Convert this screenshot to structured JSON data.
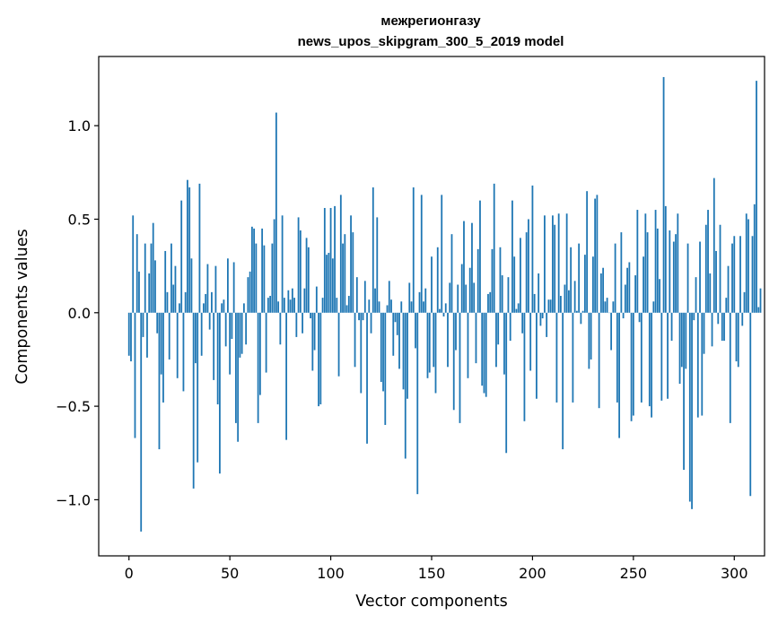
{
  "chart_data": {
    "type": "bar",
    "title_line1": "межрегионгазу",
    "title_line2": "news_upos_skipgram_300_5_2019 model",
    "xlabel": "Vector components",
    "ylabel": "Components values",
    "xlim": [
      -15,
      315
    ],
    "ylim": [
      -1.3,
      1.37
    ],
    "x_ticks": [
      0,
      50,
      100,
      150,
      200,
      250,
      300
    ],
    "x_tick_labels": [
      "0",
      "50",
      "100",
      "150",
      "200",
      "250",
      "300"
    ],
    "y_ticks": [
      -1.0,
      -0.5,
      0.0,
      0.5,
      1.0
    ],
    "y_tick_labels": [
      "−1.0",
      "−0.5",
      "0.0",
      "0.5",
      "1.0"
    ],
    "bar_color": "#1f77b4",
    "grid": false,
    "values": [
      -0.23,
      -0.26,
      0.52,
      -0.67,
      0.42,
      0.22,
      -1.17,
      -0.13,
      0.37,
      -0.24,
      0.21,
      0.37,
      0.48,
      0.28,
      -0.11,
      -0.73,
      -0.33,
      -0.48,
      0.33,
      0.11,
      -0.25,
      0.37,
      0.15,
      0.25,
      -0.35,
      0.05,
      0.6,
      -0.42,
      0.11,
      0.71,
      0.67,
      0.29,
      -0.94,
      -0.27,
      -0.8,
      0.69,
      -0.23,
      0.05,
      0.1,
      0.26,
      -0.09,
      0.11,
      -0.36,
      0.25,
      -0.49,
      -0.86,
      0.05,
      0.07,
      -0.18,
      0.29,
      -0.33,
      -0.14,
      0.27,
      -0.59,
      -0.69,
      -0.24,
      -0.22,
      0.05,
      -0.17,
      0.19,
      0.22,
      0.46,
      0.45,
      0.37,
      -0.59,
      -0.44,
      0.45,
      0.36,
      -0.32,
      0.08,
      0.09,
      0.37,
      0.5,
      1.07,
      0.06,
      -0.17,
      0.52,
      0.08,
      -0.68,
      0.12,
      0.07,
      0.13,
      0.08,
      -0.13,
      0.51,
      0.44,
      -0.11,
      0.13,
      0.4,
      0.35,
      -0.03,
      -0.31,
      -0.2,
      0.14,
      -0.5,
      -0.49,
      0.08,
      0.56,
      0.31,
      0.32,
      0.56,
      0.29,
      0.57,
      0.08,
      -0.34,
      0.63,
      0.37,
      0.42,
      0.04,
      0.09,
      0.52,
      0.43,
      -0.29,
      0.19,
      -0.04,
      -0.43,
      -0.04,
      0.17,
      -0.7,
      0.07,
      -0.11,
      0.67,
      0.13,
      0.51,
      0.06,
      -0.37,
      -0.42,
      -0.6,
      0.04,
      0.17,
      0.07,
      -0.23,
      -0.05,
      -0.12,
      -0.3,
      0.06,
      -0.41,
      -0.78,
      -0.46,
      0.16,
      0.06,
      0.67,
      -0.19,
      -0.97,
      0.11,
      0.63,
      0.06,
      0.13,
      -0.35,
      -0.32,
      0.3,
      -0.29,
      -0.43,
      0.35,
      0.02,
      0.63,
      -0.02,
      0.05,
      -0.29,
      0.16,
      0.42,
      -0.52,
      -0.2,
      0.15,
      -0.59,
      0.26,
      0.49,
      0.15,
      -0.35,
      0.24,
      0.48,
      0.16,
      -0.27,
      0.34,
      0.6,
      -0.39,
      -0.43,
      -0.45,
      0.1,
      0.11,
      0.34,
      0.69,
      -0.29,
      -0.17,
      0.35,
      0.2,
      -0.33,
      -0.75,
      0.19,
      -0.15,
      0.6,
      0.3,
      0.02,
      0.05,
      0.4,
      -0.11,
      -0.58,
      0.43,
      0.5,
      -0.31,
      0.68,
      0.1,
      -0.46,
      0.21,
      -0.07,
      -0.03,
      0.52,
      -0.13,
      0.07,
      0.07,
      0.52,
      0.47,
      -0.48,
      0.53,
      0.09,
      -0.73,
      0.15,
      0.53,
      0.12,
      0.35,
      -0.48,
      0.17,
      0.01,
      0.37,
      -0.06,
      0.01,
      0.31,
      0.65,
      -0.3,
      -0.25,
      0.3,
      0.61,
      0.63,
      -0.51,
      0.21,
      0.24,
      0.06,
      0.08,
      0.0,
      -0.2,
      0.06,
      0.37,
      -0.48,
      -0.67,
      0.43,
      -0.03,
      0.15,
      0.24,
      0.27,
      -0.58,
      -0.55,
      0.2,
      0.55,
      -0.05,
      -0.48,
      0.3,
      0.53,
      0.43,
      -0.5,
      -0.56,
      0.06,
      0.55,
      0.45,
      0.18,
      -0.47,
      1.26,
      0.57,
      -0.46,
      0.44,
      -0.15,
      0.38,
      0.42,
      0.53,
      -0.38,
      -0.29,
      -0.84,
      -0.3,
      0.37,
      -1.01,
      -1.05,
      -0.04,
      0.19,
      -0.56,
      0.38,
      -0.55,
      -0.22,
      0.47,
      0.55,
      0.21,
      -0.18,
      0.72,
      0.33,
      -0.06,
      0.47,
      -0.15,
      -0.15,
      0.08,
      0.25,
      -0.59,
      0.37,
      0.41,
      -0.26,
      -0.29,
      0.41,
      -0.07,
      0.11,
      0.53,
      0.5,
      -0.98,
      0.41,
      0.58,
      1.24,
      0.03,
      0.13
    ]
  }
}
